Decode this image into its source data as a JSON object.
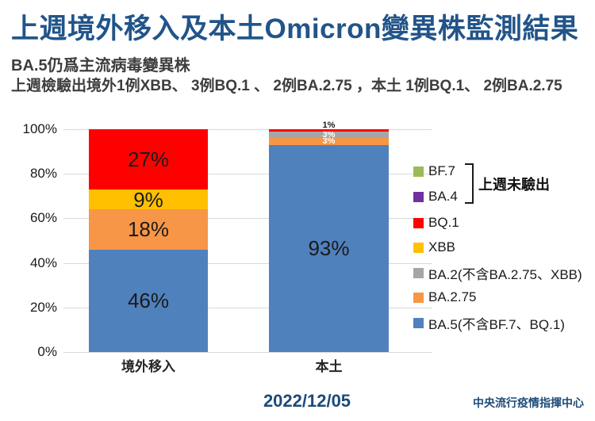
{
  "header": {
    "title": "上週境外移入及本土Omicron變異株監測結果",
    "subtitle": "BA.5仍爲主流病毒變異株",
    "description": "上週檢驗出境外1例XBB、 3例BQ.1 、 2例BA.2.75 ，本土 1例BQ.1、 2例BA.2.75"
  },
  "chart_data": {
    "type": "bar",
    "stacked": true,
    "unit": "%",
    "ylim": [
      0,
      100
    ],
    "grid": true,
    "yticks": [
      {
        "value": 0,
        "label": "0%"
      },
      {
        "value": 20,
        "label": "20%"
      },
      {
        "value": 40,
        "label": "40%"
      },
      {
        "value": 60,
        "label": "60%"
      },
      {
        "value": 80,
        "label": "80%"
      },
      {
        "value": 100,
        "label": "100%"
      }
    ],
    "categories": [
      "境外移入",
      "本土"
    ],
    "bars": [
      {
        "category": "境外移入",
        "segments": [
          {
            "name": "BA.5(不含BF.7、BQ.1)",
            "value": 46,
            "label": "46%",
            "color": "#4f81bd",
            "label_style": "large"
          },
          {
            "name": "BA.2.75",
            "value": 18,
            "label": "18%",
            "color": "#f79646",
            "label_style": "large"
          },
          {
            "name": "BA.2(不含BA.2.75、XBB)",
            "value": 0,
            "label": null,
            "color": "#a6a6a6",
            "label_style": null
          },
          {
            "name": "XBB",
            "value": 9,
            "label": "9%",
            "color": "#ffc000",
            "label_style": "large"
          },
          {
            "name": "BQ.1",
            "value": 27,
            "label": "27%",
            "color": "#fe0000",
            "label_style": "large"
          },
          {
            "name": "BA.4",
            "value": 0,
            "label": null,
            "color": "#7030a0",
            "label_style": null
          },
          {
            "name": "BF.7",
            "value": 0,
            "label": null,
            "color": "#9bbb59",
            "label_style": null
          }
        ]
      },
      {
        "category": "本土",
        "segments": [
          {
            "name": "BA.5(不含BF.7、BQ.1)",
            "value": 93,
            "label": "93%",
            "color": "#4f81bd",
            "label_style": "large"
          },
          {
            "name": "BA.2.75",
            "value": 3,
            "label": "3%",
            "color": "#f79646",
            "label_style": "small-white"
          },
          {
            "name": "BA.2(不含BA.2.75、XBB)",
            "value": 3,
            "label": "3%",
            "color": "#a6a6a6",
            "label_style": "small-white"
          },
          {
            "name": "XBB",
            "value": 0,
            "label": null,
            "color": "#ffc000",
            "label_style": null
          },
          {
            "name": "BQ.1",
            "value": 1,
            "label": "1%",
            "color": "#fe0000",
            "label_style": "small-above"
          },
          {
            "name": "BA.4",
            "value": 0,
            "label": null,
            "color": "#7030a0",
            "label_style": null
          },
          {
            "name": "BF.7",
            "value": 0,
            "label": null,
            "color": "#9bbb59",
            "label_style": null
          }
        ]
      }
    ],
    "legend": {
      "position": "right",
      "items": [
        {
          "label": "BF.7",
          "color": "#9bbb59"
        },
        {
          "label": "BA.4",
          "color": "#7030a0"
        },
        {
          "label": "BQ.1",
          "color": "#fe0000"
        },
        {
          "label": "XBB",
          "color": "#ffc000"
        },
        {
          "label": "BA.2(不含BA.2.75、XBB)",
          "color": "#a6a6a6"
        },
        {
          "label": "BA.2.75",
          "color": "#f79646"
        },
        {
          "label": "BA.5(不含BF.7、BQ.1)",
          "color": "#4f81bd"
        }
      ],
      "annotation": {
        "label": "上週未驗出",
        "applies_to": [
          "BF.7",
          "BA.4"
        ]
      }
    }
  },
  "footer": {
    "date": "2022/12/05",
    "organization": "中央流行疫情指揮中心"
  },
  "colors": {
    "title": "#215489",
    "footer_text": "#1d4b78",
    "subtitle_text": "#3d3d3d",
    "gridline": "#d9d9d9"
  }
}
